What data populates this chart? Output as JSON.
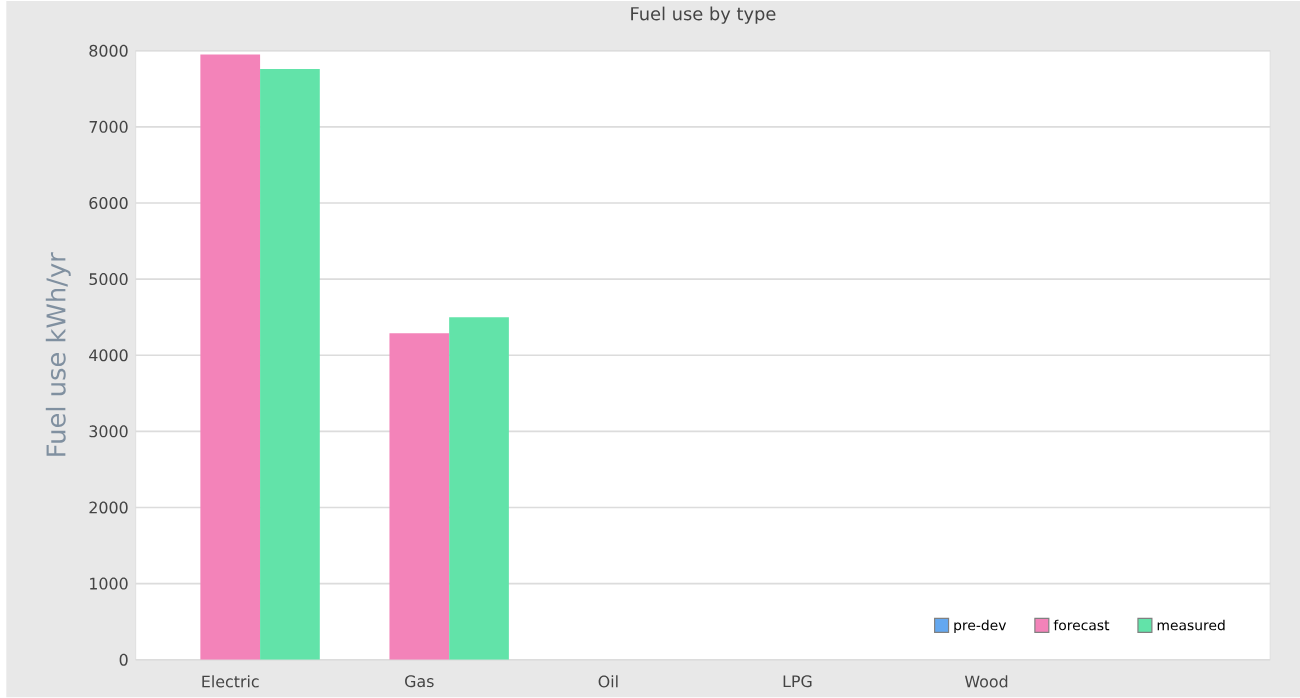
{
  "chart_data": {
    "type": "bar",
    "title": "Fuel use by type",
    "ylabel": "Fuel use  kWh/yr",
    "categories": [
      "Electric",
      "Gas",
      "Oil",
      "LPG",
      "Wood",
      null
    ],
    "series": [
      {
        "name": "pre-dev",
        "color": "#64a8f0",
        "values": [
          0,
          0,
          0,
          0,
          0,
          0
        ]
      },
      {
        "name": "forecast",
        "color": "#f383b9",
        "values": [
          7950,
          4290,
          null,
          null,
          null,
          null
        ]
      },
      {
        "name": "measured",
        "color": "#62e3a9",
        "values": [
          7760,
          4500,
          null,
          null,
          null,
          null
        ]
      }
    ],
    "ylim": [
      0,
      8000
    ],
    "yticks": [
      0,
      1000,
      2000,
      3000,
      4000,
      5000,
      6000,
      7000,
      8000
    ],
    "grid": "y",
    "legend": "bottom right"
  }
}
